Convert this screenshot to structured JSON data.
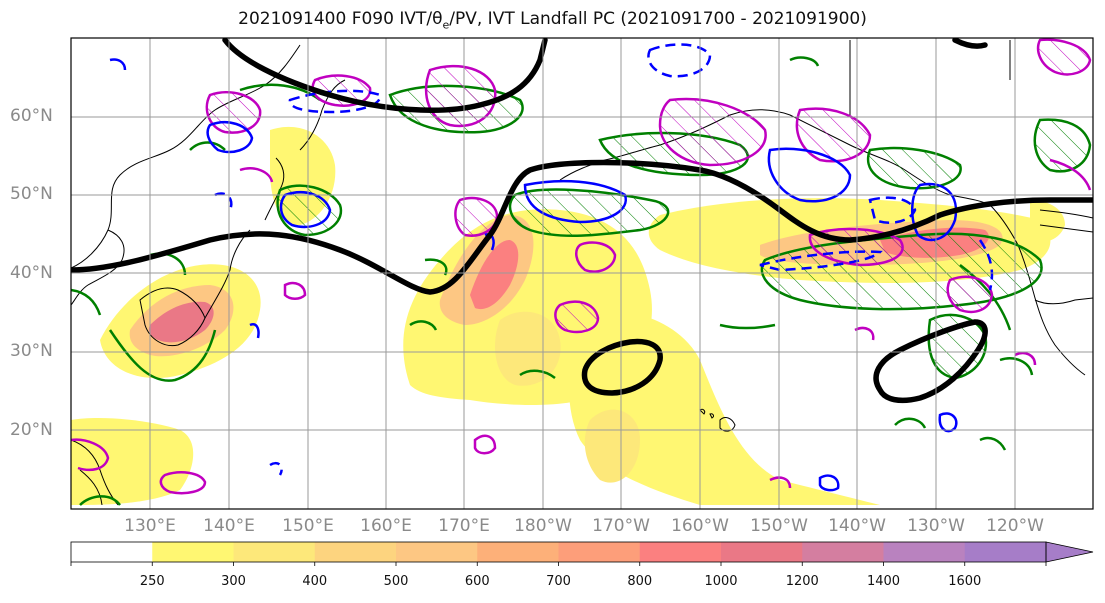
{
  "title": {
    "prefix": "2021091400 F090 IVT/",
    "theta": "θ",
    "theta_sub": "e",
    "suffix": "/PV, IVT Landfall PC (2021091700 - 2021091900)"
  },
  "axes": {
    "lat_labels": [
      "60°N",
      "50°N",
      "40°N",
      "30°N",
      "20°N"
    ],
    "lon_labels": [
      "130°E",
      "140°E",
      "150°E",
      "160°E",
      "170°E",
      "180°W",
      "170°W",
      "160°W",
      "150°W",
      "140°W",
      "130°W",
      "120°W"
    ],
    "lon_range": [
      120,
      250
    ],
    "lat_range": [
      10,
      70
    ],
    "grid": true
  },
  "colorbar": {
    "levels": [
      "250",
      "300",
      "400",
      "500",
      "600",
      "700",
      "800",
      "1000",
      "1200",
      "1400",
      "1600"
    ],
    "colors": [
      "#ffffff",
      "#fff772",
      "#fde87a",
      "#fdd47f",
      "#fdc783",
      "#fdb079",
      "#fd9e7a",
      "#fb8080",
      "#ea7886",
      "#d47ea0",
      "#b982bf",
      "#a67dc8"
    ],
    "extend": "max"
  },
  "legend_colors": {
    "theta_e_contour": "#008000",
    "pv_contour_positive": "#c000c0",
    "pv_contour_negative": "#0000ff",
    "ivt_landfall_contour": "#000000"
  }
}
